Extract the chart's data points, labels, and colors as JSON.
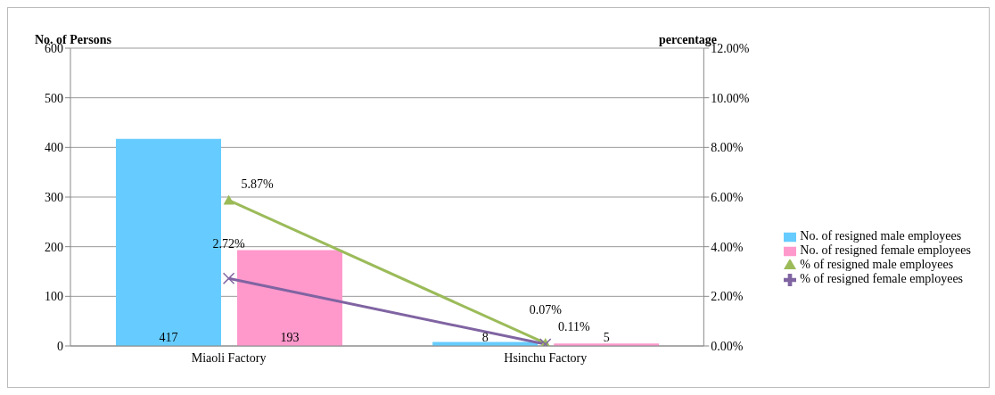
{
  "chart_data": {
    "type": "bar",
    "ylabel": "No. of Persons",
    "y2label": "percentage",
    "categories": [
      "Miaoli Factory",
      "Hsinchu Factory"
    ],
    "series": [
      {
        "name": "No. of resigned male employees",
        "color": "#66ccff",
        "values": [
          417,
          8
        ]
      },
      {
        "name": "No. of resigned female employees",
        "color": "#ff99cc",
        "values": [
          193,
          5
        ]
      },
      {
        "name": "% of resigned male employees",
        "type": "line",
        "axis": "y2",
        "color": "#9bbb59",
        "marker": "triangle",
        "values": [
          5.87,
          0.11
        ],
        "value_labels": [
          "5.87%",
          "0.11%"
        ]
      },
      {
        "name": "% of resigned female employees",
        "type": "line",
        "axis": "y2",
        "color": "#8064a2",
        "marker": "cross",
        "values": [
          2.72,
          0.07
        ],
        "value_labels": [
          "2.72%",
          "0.07%"
        ]
      }
    ],
    "ylim": [
      0,
      600
    ],
    "yticks": [
      0,
      100,
      200,
      300,
      400,
      500,
      600
    ],
    "y2lim": [
      0,
      12
    ],
    "y2ticks": [
      {
        "value": 0,
        "label": "0.00%"
      },
      {
        "value": 2,
        "label": "2.00%"
      },
      {
        "value": 4,
        "label": "4.00%"
      },
      {
        "value": 6,
        "label": "6.00%"
      },
      {
        "value": 8,
        "label": "8.00%"
      },
      {
        "value": 10,
        "label": "10.00%"
      },
      {
        "value": 12,
        "label": "12.00%"
      }
    ],
    "grid": "y",
    "legend": "right",
    "data_labels": true
  }
}
